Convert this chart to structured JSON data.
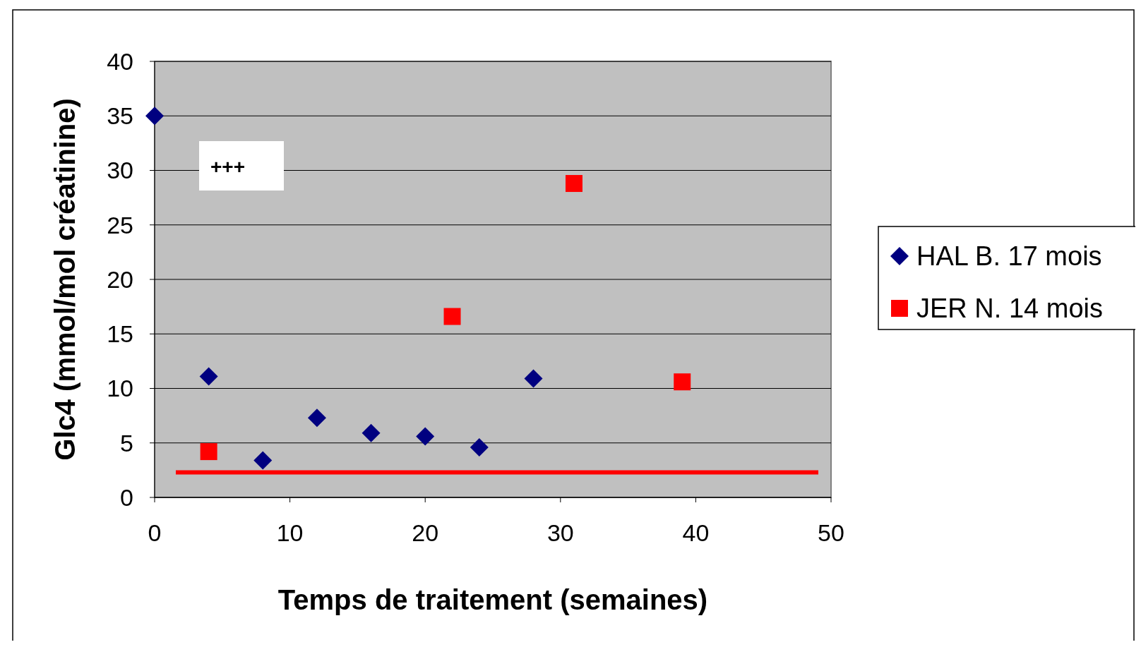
{
  "chart_data": {
    "type": "scatter",
    "xlabel": "Temps de traitement (semaines)",
    "ylabel": "Glc4 (mmol/mol créatinine)",
    "xlim": [
      0,
      50
    ],
    "xticks": [
      0,
      10,
      20,
      30,
      40,
      50
    ],
    "ylim": [
      0,
      40
    ],
    "yticks": [
      0,
      5,
      10,
      15,
      20,
      25,
      30,
      35,
      40
    ],
    "grid": "y",
    "legend": "right",
    "series": [
      {
        "name": "HAL B. 17 mois",
        "color": "#000080",
        "marker": "diamond",
        "x": [
          0,
          4,
          8,
          12,
          16,
          20,
          24,
          28
        ],
        "values": [
          35,
          11.1,
          3.4,
          7.3,
          5.9,
          5.6,
          4.6,
          10.9
        ]
      },
      {
        "name": "JER N. 14 mois",
        "color": "#ff0000",
        "marker": "square",
        "x": [
          4,
          22,
          31,
          39
        ],
        "values": [
          4.2,
          16.6,
          28.8,
          10.6
        ]
      }
    ],
    "ref_lines": [
      {
        "axis": "y",
        "value": 2.3,
        "color": "#ff0000",
        "line_style": "solid"
      }
    ],
    "annotations": [
      "+++"
    ]
  }
}
